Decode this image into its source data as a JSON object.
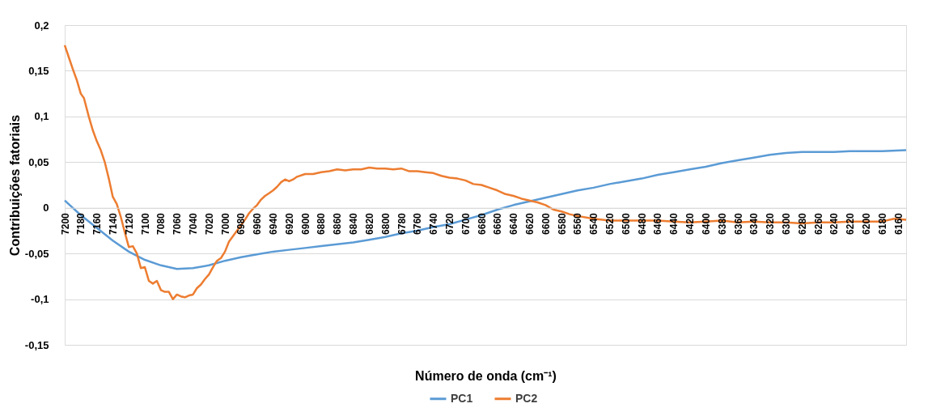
{
  "chart_data": {
    "type": "line",
    "xlabel": "Número de onda (cm⁻¹)",
    "ylabel": "Contribuições fatoriais",
    "xlim": [
      7200,
      6150
    ],
    "ylim": [
      -0.15,
      0.2
    ],
    "xticks": [
      7200,
      7180,
      7160,
      7140,
      7120,
      7100,
      7080,
      7060,
      7040,
      7020,
      7000,
      6980,
      6960,
      6940,
      6920,
      6900,
      6880,
      6860,
      6840,
      6820,
      6800,
      6780,
      6760,
      6740,
      6720,
      6700,
      6680,
      6660,
      6640,
      6620,
      6600,
      6580,
      6560,
      6540,
      6520,
      6500,
      6480,
      6460,
      6440,
      6420,
      6400,
      6380,
      6360,
      6340,
      6320,
      6300,
      6280,
      6260,
      6240,
      6220,
      6200,
      6180,
      6160
    ],
    "yticks": [
      {
        "value": 0.2,
        "label": "0,2"
      },
      {
        "value": 0.15,
        "label": "0,15"
      },
      {
        "value": 0.1,
        "label": "0,1"
      },
      {
        "value": 0.05,
        "label": "0,05"
      },
      0,
      {
        "value": -0.05,
        "label": "-0,05"
      },
      {
        "value": -0.1,
        "label": "-0,1"
      },
      {
        "value": -0.15,
        "label": "-0,15"
      }
    ],
    "grid": "y",
    "legend": "bottom",
    "marker": "none",
    "line_style": "solid",
    "series": [
      {
        "name": "PC1",
        "color": "#5b9bd5",
        "x": [
          7200,
          7180,
          7160,
          7140,
          7120,
          7100,
          7080,
          7060,
          7040,
          7020,
          7000,
          6980,
          6960,
          6940,
          6920,
          6900,
          6880,
          6860,
          6840,
          6820,
          6800,
          6780,
          6760,
          6740,
          6720,
          6700,
          6680,
          6660,
          6640,
          6620,
          6600,
          6580,
          6560,
          6540,
          6520,
          6500,
          6480,
          6460,
          6440,
          6420,
          6400,
          6380,
          6360,
          6340,
          6320,
          6300,
          6280,
          6260,
          6240,
          6220,
          6200,
          6180,
          6150
        ],
        "values": [
          0.008,
          -0.008,
          -0.022,
          -0.036,
          -0.048,
          -0.057,
          -0.063,
          -0.067,
          -0.066,
          -0.063,
          -0.058,
          -0.054,
          -0.051,
          -0.048,
          -0.046,
          -0.044,
          -0.042,
          -0.04,
          -0.038,
          -0.035,
          -0.032,
          -0.028,
          -0.025,
          -0.021,
          -0.018,
          -0.013,
          -0.008,
          -0.002,
          0.003,
          0.007,
          0.011,
          0.015,
          0.019,
          0.022,
          0.026,
          0.029,
          0.032,
          0.036,
          0.039,
          0.042,
          0.045,
          0.049,
          0.052,
          0.055,
          0.058,
          0.06,
          0.061,
          0.061,
          0.061,
          0.062,
          0.062,
          0.062,
          0.063
        ]
      },
      {
        "name": "PC2",
        "color": "#ed7d31",
        "x": [
          7200,
          7195,
          7190,
          7185,
          7180,
          7176,
          7170,
          7165,
          7160,
          7155,
          7150,
          7145,
          7140,
          7135,
          7130,
          7125,
          7120,
          7115,
          7110,
          7105,
          7100,
          7095,
          7090,
          7085,
          7080,
          7075,
          7070,
          7065,
          7060,
          7055,
          7050,
          7045,
          7040,
          7035,
          7030,
          7025,
          7020,
          7015,
          7010,
          7005,
          7000,
          6995,
          6990,
          6985,
          6980,
          6975,
          6970,
          6965,
          6960,
          6955,
          6950,
          6945,
          6940,
          6935,
          6930,
          6925,
          6920,
          6915,
          6910,
          6900,
          6890,
          6880,
          6870,
          6860,
          6850,
          6840,
          6830,
          6820,
          6810,
          6800,
          6790,
          6780,
          6770,
          6760,
          6750,
          6740,
          6730,
          6720,
          6710,
          6700,
          6690,
          6680,
          6670,
          6660,
          6650,
          6640,
          6630,
          6620,
          6610,
          6600,
          6590,
          6580,
          6570,
          6560,
          6540,
          6520,
          6500,
          6480,
          6460,
          6440,
          6420,
          6400,
          6380,
          6360,
          6340,
          6320,
          6300,
          6280,
          6260,
          6240,
          6220,
          6200,
          6180,
          6165,
          6150
        ],
        "values": [
          0.178,
          0.165,
          0.152,
          0.14,
          0.125,
          0.12,
          0.1,
          0.085,
          0.073,
          0.063,
          0.05,
          0.032,
          0.012,
          0.004,
          -0.01,
          -0.027,
          -0.043,
          -0.042,
          -0.05,
          -0.066,
          -0.065,
          -0.08,
          -0.083,
          -0.08,
          -0.09,
          -0.092,
          -0.092,
          -0.1,
          -0.095,
          -0.097,
          -0.098,
          -0.096,
          -0.095,
          -0.088,
          -0.084,
          -0.078,
          -0.073,
          -0.065,
          -0.058,
          -0.055,
          -0.048,
          -0.037,
          -0.031,
          -0.025,
          -0.019,
          -0.013,
          -0.006,
          -0.001,
          0.003,
          0.009,
          0.013,
          0.016,
          0.019,
          0.023,
          0.028,
          0.031,
          0.029,
          0.031,
          0.034,
          0.037,
          0.037,
          0.039,
          0.04,
          0.042,
          0.041,
          0.042,
          0.042,
          0.044,
          0.043,
          0.043,
          0.042,
          0.043,
          0.04,
          0.04,
          0.039,
          0.038,
          0.035,
          0.033,
          0.032,
          0.03,
          0.026,
          0.025,
          0.022,
          0.019,
          0.015,
          0.013,
          0.01,
          0.008,
          0.006,
          0.003,
          -0.002,
          -0.004,
          -0.007,
          -0.009,
          -0.012,
          -0.014,
          -0.014,
          -0.014,
          -0.014,
          -0.015,
          -0.016,
          -0.015,
          -0.014,
          -0.016,
          -0.015,
          -0.016,
          -0.016,
          -0.017,
          -0.016,
          -0.016,
          -0.015,
          -0.015,
          -0.015,
          -0.012,
          -0.013
        ]
      }
    ]
  }
}
